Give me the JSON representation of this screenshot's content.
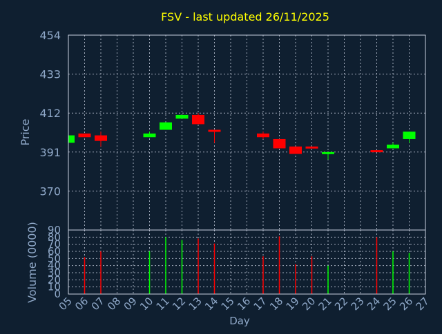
{
  "colors": {
    "background": "#0f1f30",
    "frame": "#c8d0e0",
    "grid": "#c8d0e0",
    "title": "#ffff00",
    "axis_text": "#8fa8c8",
    "up": "#00ff00",
    "down": "#ff0000"
  },
  "chart_data": [
    {
      "type": "candlestick",
      "title": "FSV - last updated 26/11/2025",
      "ylabel": "Price",
      "ylim": [
        349,
        454
      ],
      "yticks": [
        454,
        433,
        412,
        391,
        370
      ],
      "grid": true,
      "x": [
        "05",
        "06",
        "07",
        "08",
        "09",
        "10",
        "11",
        "12",
        "13",
        "14",
        "15",
        "16",
        "17",
        "18",
        "19",
        "20",
        "21",
        "22",
        "23",
        "24",
        "25",
        "26",
        "27"
      ],
      "candles": [
        {
          "day": "05",
          "open": 396,
          "close": 400,
          "high": 400,
          "low": 396
        },
        {
          "day": "06",
          "open": 401,
          "close": 399,
          "high": 401,
          "low": 399
        },
        {
          "day": "07",
          "open": 400,
          "close": 397,
          "high": 402,
          "low": 394
        },
        {
          "day": "10",
          "open": 399,
          "close": 401,
          "high": 402,
          "low": 399
        },
        {
          "day": "11",
          "open": 403,
          "close": 407,
          "high": 407,
          "low": 403
        },
        {
          "day": "12",
          "open": 409,
          "close": 411,
          "high": 411,
          "low": 409
        },
        {
          "day": "13",
          "open": 411,
          "close": 406,
          "high": 412,
          "low": 406
        },
        {
          "day": "14",
          "open": 403,
          "close": 402,
          "high": 403,
          "low": 396
        },
        {
          "day": "17",
          "open": 401,
          "close": 399,
          "high": 402,
          "low": 398
        },
        {
          "day": "18",
          "open": 398,
          "close": 393,
          "high": 398,
          "low": 393
        },
        {
          "day": "19",
          "open": 394,
          "close": 390,
          "high": 394,
          "low": 390
        },
        {
          "day": "20",
          "open": 394,
          "close": 393,
          "high": 394,
          "low": 393
        },
        {
          "day": "21",
          "open": 390,
          "close": 391,
          "high": 391,
          "low": 387
        },
        {
          "day": "24",
          "open": 392,
          "close": 391,
          "high": 392,
          "low": 391
        },
        {
          "day": "25",
          "open": 393,
          "close": 395,
          "high": 396,
          "low": 393
        },
        {
          "day": "26",
          "open": 398,
          "close": 402,
          "high": 402,
          "low": 396
        }
      ]
    },
    {
      "type": "bar",
      "ylabel": "Volume (0000)",
      "xlabel": "Day",
      "ylim": [
        0,
        90
      ],
      "yticks": [
        0,
        10,
        20,
        30,
        40,
        50,
        60,
        70,
        80,
        90
      ],
      "grid": true,
      "x": [
        "05",
        "06",
        "07",
        "08",
        "09",
        "10",
        "11",
        "12",
        "13",
        "14",
        "15",
        "16",
        "17",
        "18",
        "19",
        "20",
        "21",
        "22",
        "23",
        "24",
        "25",
        "26",
        "27"
      ],
      "volumes": [
        {
          "day": "06",
          "value": 52,
          "direction": "down"
        },
        {
          "day": "07",
          "value": 60,
          "direction": "down"
        },
        {
          "day": "10",
          "value": 60,
          "direction": "up"
        },
        {
          "day": "11",
          "value": 80,
          "direction": "up"
        },
        {
          "day": "12",
          "value": 76,
          "direction": "up"
        },
        {
          "day": "13",
          "value": 78,
          "direction": "down"
        },
        {
          "day": "14",
          "value": 71,
          "direction": "down"
        },
        {
          "day": "17",
          "value": 53,
          "direction": "down"
        },
        {
          "day": "18",
          "value": 81,
          "direction": "down"
        },
        {
          "day": "19",
          "value": 42,
          "direction": "down"
        },
        {
          "day": "20",
          "value": 53,
          "direction": "down"
        },
        {
          "day": "21",
          "value": 40,
          "direction": "up"
        },
        {
          "day": "24",
          "value": 80,
          "direction": "down"
        },
        {
          "day": "25",
          "value": 60,
          "direction": "up"
        },
        {
          "day": "26",
          "value": 58,
          "direction": "up"
        }
      ]
    }
  ]
}
